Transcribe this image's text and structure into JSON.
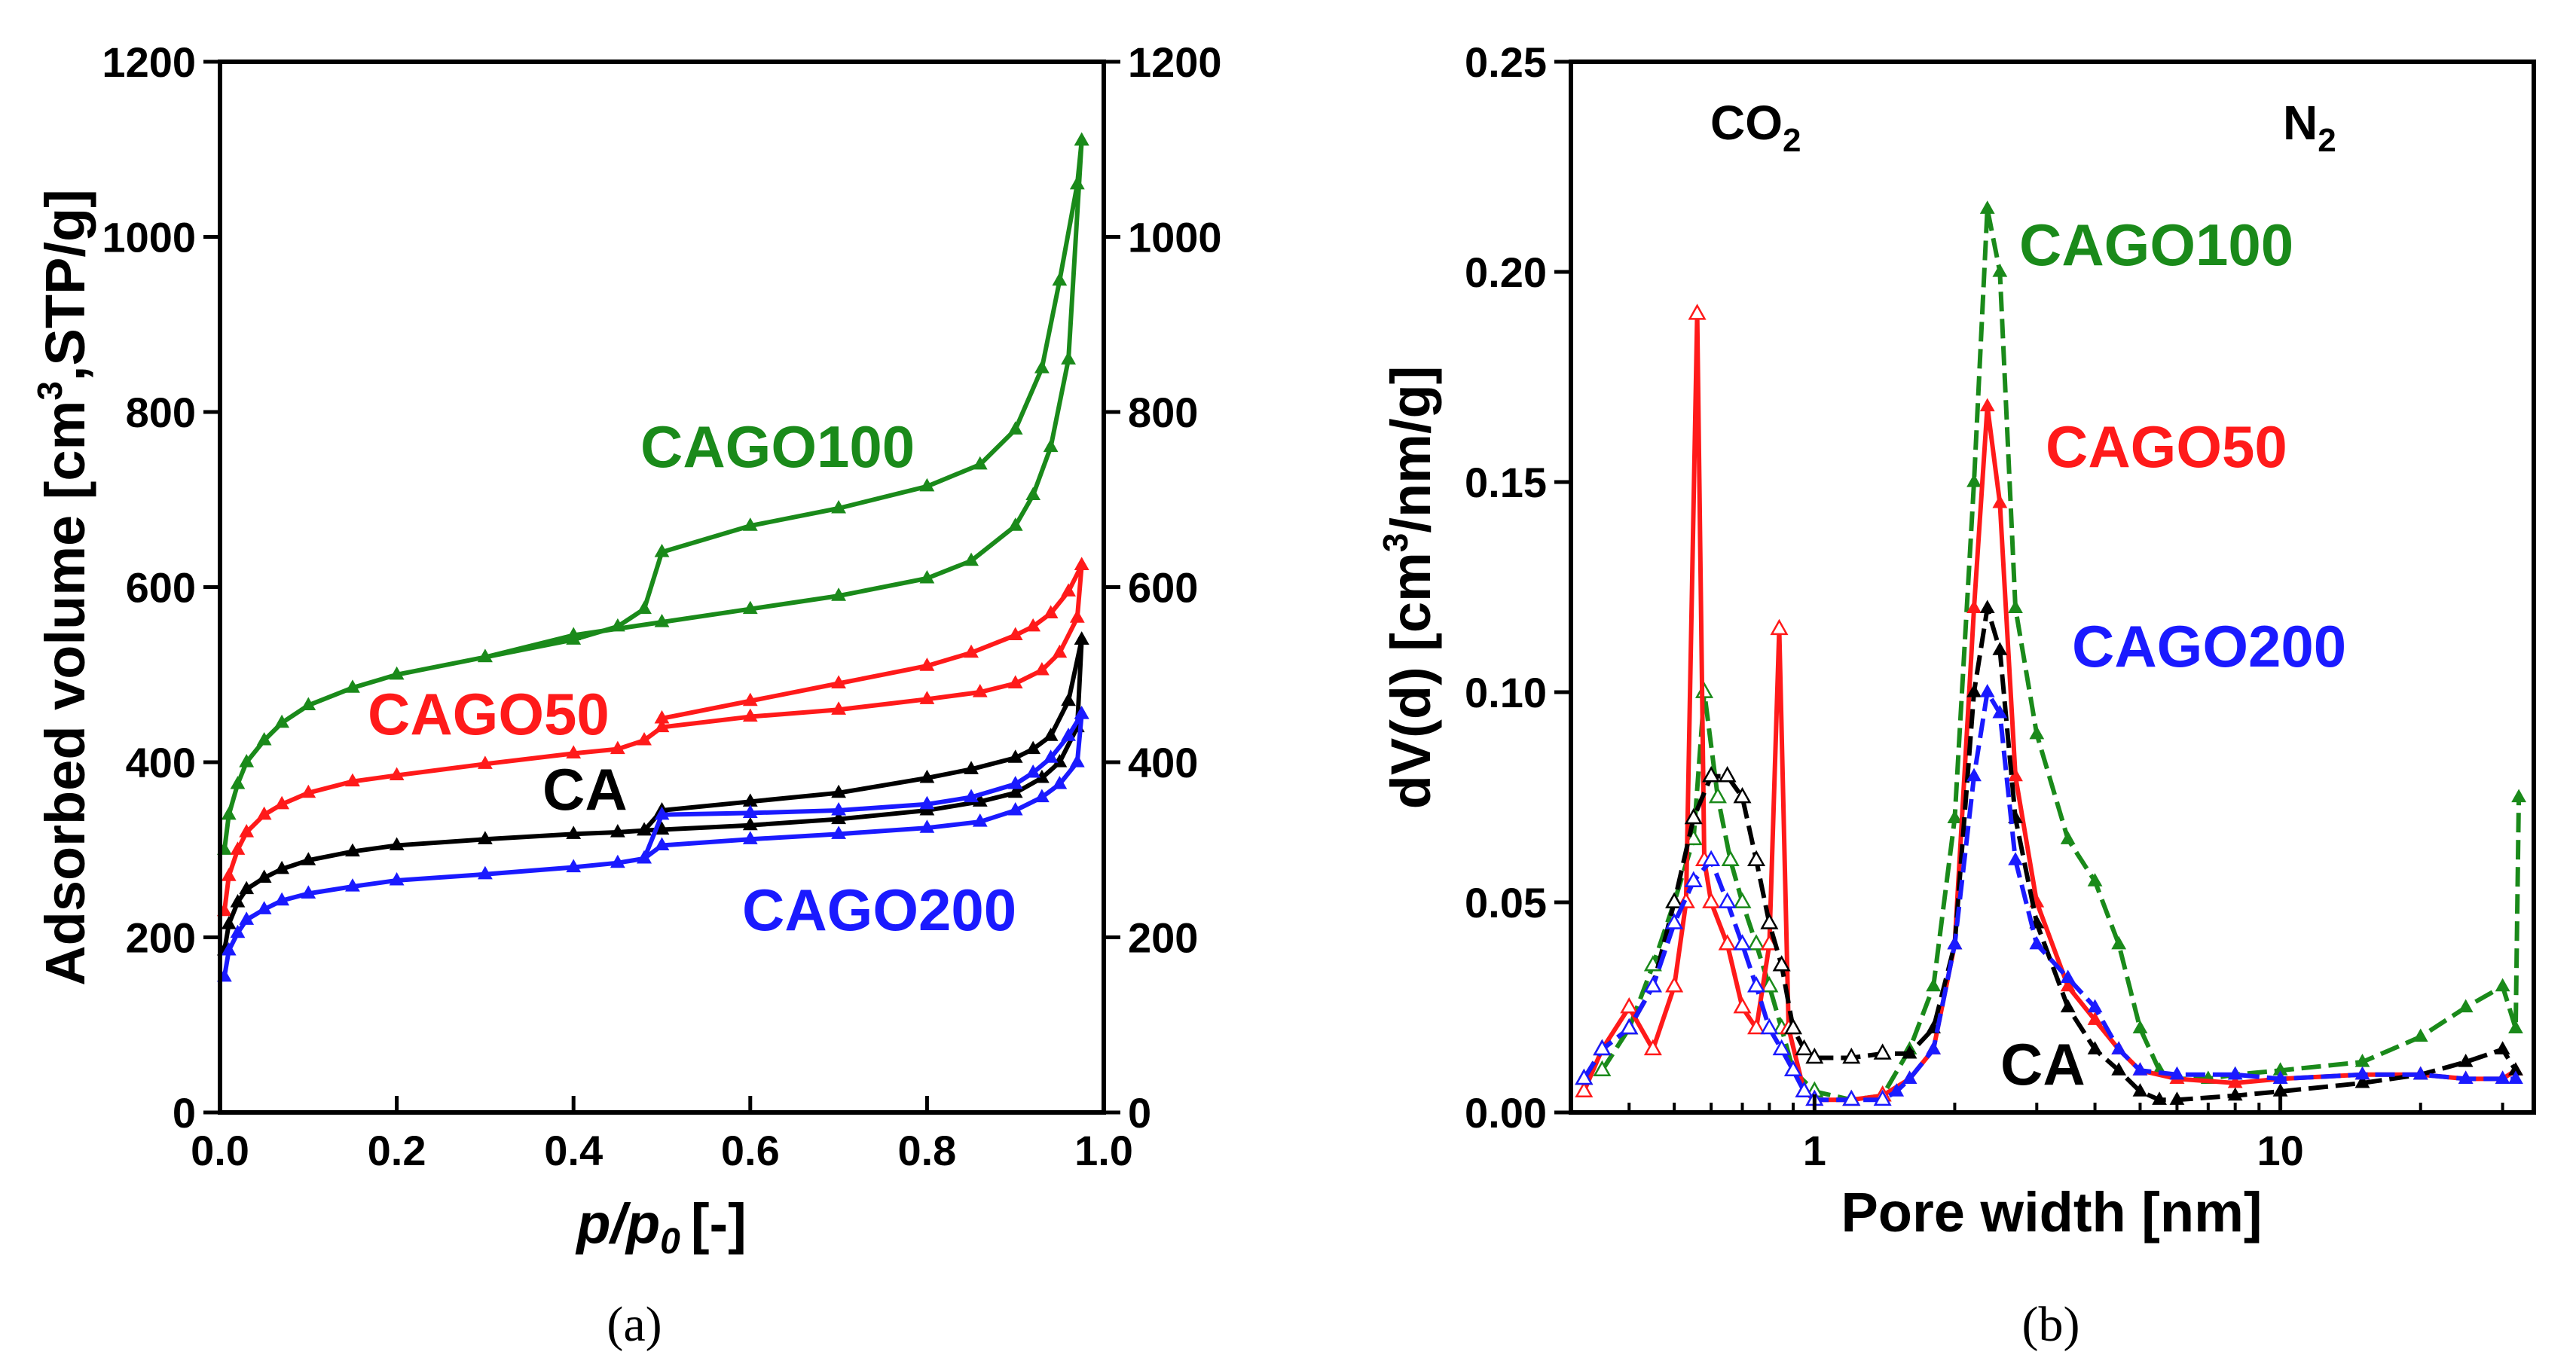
{
  "chart_data": [
    {
      "panel_label": "(a)",
      "type": "line",
      "xlabel_main": "p/p",
      "xlabel_sub": "0",
      "xlabel_unit": "[-]",
      "ylabel_pre": "Adsorbed volume [cm",
      "ylabel_sup": "3",
      "ylabel_post": ",STP/g]",
      "xlim": [
        0,
        1.0
      ],
      "ylim": [
        0,
        1200
      ],
      "x_ticks": [
        "0.0",
        "0.2",
        "0.4",
        "0.6",
        "0.8",
        "1.0"
      ],
      "y_ticks": [
        "0",
        "200",
        "400",
        "600",
        "800",
        "1000",
        "1200"
      ],
      "y_ticks_right": [
        "0",
        "200",
        "400",
        "600",
        "800",
        "1000",
        "1200"
      ],
      "series": [
        {
          "name": "CAGO100",
          "color": "#1a8a1a",
          "adsorption": {
            "x": [
              0.005,
              0.01,
              0.02,
              0.03,
              0.05,
              0.07,
              0.1,
              0.15,
              0.2,
              0.3,
              0.4,
              0.45,
              0.48,
              0.5,
              0.6,
              0.7,
              0.8,
              0.86,
              0.9,
              0.93,
              0.95,
              0.97,
              0.975
            ],
            "y": [
              300,
              340,
              375,
              400,
              425,
              445,
              465,
              485,
              500,
              520,
              540,
              555,
              575,
              640,
              670,
              690,
              715,
              740,
              780,
              850,
              950,
              1060,
              1110
            ]
          },
          "desorption": {
            "x": [
              0.975,
              0.96,
              0.94,
              0.92,
              0.9,
              0.85,
              0.8,
              0.7,
              0.6,
              0.5,
              0.4,
              0.3
            ],
            "y": [
              1110,
              860,
              760,
              705,
              670,
              630,
              610,
              590,
              575,
              560,
              545,
              520
            ]
          }
        },
        {
          "name": "CAGO50",
          "color": "#ff1a1a",
          "adsorption": {
            "x": [
              0.005,
              0.01,
              0.02,
              0.03,
              0.05,
              0.07,
              0.1,
              0.15,
              0.2,
              0.3,
              0.4,
              0.45,
              0.48,
              0.5,
              0.6,
              0.7,
              0.8,
              0.86,
              0.9,
              0.93,
              0.95,
              0.97,
              0.975
            ],
            "y": [
              230,
              270,
              300,
              320,
              340,
              352,
              365,
              378,
              385,
              398,
              410,
              415,
              425,
              440,
              452,
              460,
              472,
              480,
              490,
              505,
              525,
              565,
              625
            ]
          },
          "desorption": {
            "x": [
              0.975,
              0.96,
              0.94,
              0.92,
              0.9,
              0.85,
              0.8,
              0.7,
              0.6,
              0.5
            ],
            "y": [
              625,
              595,
              570,
              555,
              545,
              525,
              510,
              490,
              470,
              450
            ]
          }
        },
        {
          "name": "CA",
          "color": "#000000",
          "adsorption": {
            "x": [
              0.005,
              0.01,
              0.02,
              0.03,
              0.05,
              0.07,
              0.1,
              0.15,
              0.2,
              0.3,
              0.4,
              0.45,
              0.48,
              0.5,
              0.6,
              0.7,
              0.8,
              0.86,
              0.9,
              0.93,
              0.95,
              0.97,
              0.975
            ],
            "y": [
              185,
              215,
              240,
              255,
              268,
              278,
              288,
              298,
              305,
              312,
              318,
              320,
              322,
              323,
              328,
              335,
              345,
              355,
              365,
              382,
              400,
              440,
              540
            ]
          },
          "desorption": {
            "x": [
              0.975,
              0.96,
              0.94,
              0.92,
              0.9,
              0.85,
              0.8,
              0.7,
              0.6,
              0.5,
              0.48
            ],
            "y": [
              540,
              470,
              430,
              415,
              405,
              392,
              382,
              365,
              355,
              345,
              322
            ]
          }
        },
        {
          "name": "CAGO200",
          "color": "#1a1aff",
          "adsorption": {
            "x": [
              0.005,
              0.01,
              0.02,
              0.03,
              0.05,
              0.07,
              0.1,
              0.15,
              0.2,
              0.3,
              0.4,
              0.45,
              0.48,
              0.5,
              0.6,
              0.7,
              0.8,
              0.86,
              0.9,
              0.93,
              0.95,
              0.97,
              0.975
            ],
            "y": [
              155,
              185,
              205,
              220,
              232,
              242,
              250,
              258,
              265,
              272,
              280,
              285,
              290,
              305,
              312,
              318,
              325,
              332,
              345,
              360,
              375,
              400,
              455
            ]
          },
          "desorption": {
            "x": [
              0.975,
              0.96,
              0.94,
              0.92,
              0.9,
              0.85,
              0.8,
              0.7,
              0.6,
              0.5,
              0.48
            ],
            "y": [
              455,
              430,
              405,
              388,
              375,
              360,
              352,
              345,
              342,
              340,
              290
            ]
          }
        }
      ],
      "series_labels": [
        "CAGO100",
        "CAGO50",
        "CA",
        "CAGO200"
      ]
    },
    {
      "panel_label": "(b)",
      "type": "line",
      "xscale": "log",
      "xlabel": "Pore width [nm]",
      "ylabel_pre": "dV(d) [cm",
      "ylabel_sup": "3",
      "ylabel_post": "/nm/g]",
      "xlim": [
        0.3,
        35
      ],
      "ylim": [
        0,
        0.25
      ],
      "x_ticks": [
        "1",
        "10"
      ],
      "x_tick_values": [
        1,
        10
      ],
      "y_ticks": [
        "0.00",
        "0.05",
        "0.10",
        "0.15",
        "0.20",
        "0.25"
      ],
      "region_labels": {
        "co2": "CO",
        "co2_sub": "2",
        "n2": "N",
        "n2_sub": "2"
      },
      "series": [
        {
          "name": "CAGO100",
          "color": "#1a8a1a",
          "x": [
            0.35,
            0.4,
            0.45,
            0.5,
            0.55,
            0.58,
            0.62,
            0.66,
            0.7,
            0.75,
            0.8,
            0.85,
            0.9,
            1.0,
            1.2,
            1.4,
            1.6,
            1.8,
            2.0,
            2.2,
            2.35,
            2.5,
            2.7,
            3.0,
            3.5,
            4.0,
            4.5,
            5.0,
            5.5,
            6.0,
            7.0,
            8.0,
            10,
            15,
            20,
            25,
            30,
            32,
            32.5
          ],
          "y": [
            0.01,
            0.02,
            0.035,
            0.05,
            0.065,
            0.1,
            0.075,
            0.06,
            0.05,
            0.04,
            0.03,
            0.02,
            0.01,
            0.005,
            0.003,
            0.004,
            0.015,
            0.03,
            0.07,
            0.15,
            0.215,
            0.2,
            0.12,
            0.09,
            0.065,
            0.055,
            0.04,
            0.02,
            0.01,
            0.008,
            0.008,
            0.009,
            0.01,
            0.012,
            0.018,
            0.025,
            0.03,
            0.02,
            0.075
          ]
        },
        {
          "name": "CAGO50",
          "color": "#ff1a1a",
          "x": [
            0.32,
            0.35,
            0.4,
            0.45,
            0.5,
            0.53,
            0.56,
            0.58,
            0.6,
            0.65,
            0.7,
            0.75,
            0.8,
            0.84,
            0.88,
            0.95,
            1.0,
            1.2,
            1.4,
            1.6,
            1.8,
            2.0,
            2.2,
            2.35,
            2.5,
            2.7,
            3.0,
            3.5,
            4.0,
            4.5,
            5.0,
            6.0,
            8.0,
            10,
            15,
            20,
            25,
            30,
            32
          ],
          "y": [
            0.005,
            0.015,
            0.025,
            0.015,
            0.03,
            0.05,
            0.19,
            0.06,
            0.05,
            0.04,
            0.025,
            0.02,
            0.04,
            0.115,
            0.02,
            0.005,
            0.003,
            0.003,
            0.004,
            0.008,
            0.015,
            0.04,
            0.12,
            0.168,
            0.145,
            0.08,
            0.05,
            0.03,
            0.022,
            0.015,
            0.01,
            0.008,
            0.007,
            0.008,
            0.009,
            0.009,
            0.008,
            0.008,
            0.01
          ]
        },
        {
          "name": "CA",
          "color": "#000000",
          "x": [
            0.32,
            0.35,
            0.4,
            0.45,
            0.5,
            0.55,
            0.6,
            0.65,
            0.7,
            0.75,
            0.8,
            0.85,
            0.9,
            0.95,
            1.0,
            1.2,
            1.4,
            1.6,
            1.8,
            2.0,
            2.2,
            2.35,
            2.5,
            2.7,
            3.0,
            3.5,
            4.0,
            4.5,
            5.0,
            5.5,
            6.0,
            8.0,
            10,
            15,
            20,
            25,
            30,
            32
          ],
          "y": [
            0.008,
            0.015,
            0.02,
            0.03,
            0.05,
            0.07,
            0.08,
            0.08,
            0.075,
            0.06,
            0.045,
            0.035,
            0.02,
            0.015,
            0.013,
            0.013,
            0.014,
            0.014,
            0.02,
            0.04,
            0.1,
            0.12,
            0.11,
            0.07,
            0.045,
            0.025,
            0.015,
            0.01,
            0.005,
            0.003,
            0.003,
            0.004,
            0.005,
            0.007,
            0.009,
            0.012,
            0.015,
            0.01
          ]
        },
        {
          "name": "CAGO200",
          "color": "#1a1aff",
          "x": [
            0.32,
            0.35,
            0.4,
            0.45,
            0.5,
            0.55,
            0.6,
            0.65,
            0.7,
            0.75,
            0.8,
            0.85,
            0.9,
            0.95,
            1.0,
            1.2,
            1.4,
            1.5,
            1.6,
            1.8,
            2.0,
            2.2,
            2.35,
            2.5,
            2.7,
            3.0,
            3.5,
            4.0,
            4.5,
            5.0,
            6.0,
            8.0,
            10,
            15,
            20,
            25,
            30,
            32
          ],
          "y": [
            0.008,
            0.015,
            0.02,
            0.03,
            0.045,
            0.055,
            0.06,
            0.05,
            0.04,
            0.03,
            0.02,
            0.015,
            0.01,
            0.005,
            0.003,
            0.003,
            0.003,
            0.005,
            0.008,
            0.015,
            0.04,
            0.08,
            0.1,
            0.095,
            0.06,
            0.04,
            0.032,
            0.025,
            0.015,
            0.01,
            0.009,
            0.009,
            0.008,
            0.009,
            0.009,
            0.008,
            0.008,
            0.008
          ]
        }
      ],
      "series_labels": [
        "CAGO100",
        "CAGO50",
        "CAGO200",
        "CA"
      ]
    }
  ]
}
